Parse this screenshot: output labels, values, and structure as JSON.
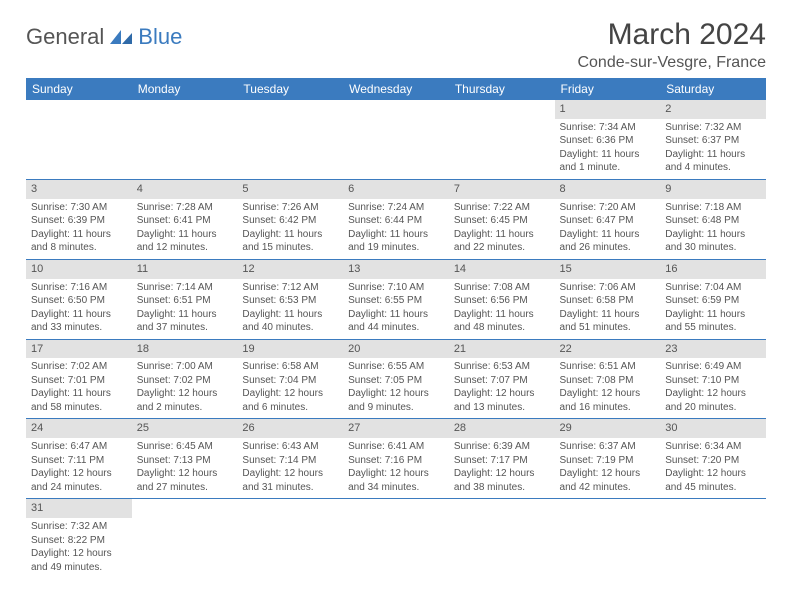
{
  "brand": {
    "part_a": "General",
    "part_b": "Blue"
  },
  "title": "March 2024",
  "location": "Conde-sur-Vesgre, France",
  "weekday_headers": [
    "Sunday",
    "Monday",
    "Tuesday",
    "Wednesday",
    "Thursday",
    "Friday",
    "Saturday"
  ],
  "colors": {
    "header_bg": "#3b7bbf",
    "header_fg": "#ffffff",
    "daynum_bg": "#e2e2e2",
    "cell_border": "#3b7bbf",
    "text": "#555555",
    "brand_blue": "#3b7bbf"
  },
  "weeks": [
    [
      null,
      null,
      null,
      null,
      null,
      {
        "num": "1",
        "sunrise": "Sunrise: 7:34 AM",
        "sunset": "Sunset: 6:36 PM",
        "daylight": "Daylight: 11 hours and 1 minute."
      },
      {
        "num": "2",
        "sunrise": "Sunrise: 7:32 AM",
        "sunset": "Sunset: 6:37 PM",
        "daylight": "Daylight: 11 hours and 4 minutes."
      }
    ],
    [
      {
        "num": "3",
        "sunrise": "Sunrise: 7:30 AM",
        "sunset": "Sunset: 6:39 PM",
        "daylight": "Daylight: 11 hours and 8 minutes."
      },
      {
        "num": "4",
        "sunrise": "Sunrise: 7:28 AM",
        "sunset": "Sunset: 6:41 PM",
        "daylight": "Daylight: 11 hours and 12 minutes."
      },
      {
        "num": "5",
        "sunrise": "Sunrise: 7:26 AM",
        "sunset": "Sunset: 6:42 PM",
        "daylight": "Daylight: 11 hours and 15 minutes."
      },
      {
        "num": "6",
        "sunrise": "Sunrise: 7:24 AM",
        "sunset": "Sunset: 6:44 PM",
        "daylight": "Daylight: 11 hours and 19 minutes."
      },
      {
        "num": "7",
        "sunrise": "Sunrise: 7:22 AM",
        "sunset": "Sunset: 6:45 PM",
        "daylight": "Daylight: 11 hours and 22 minutes."
      },
      {
        "num": "8",
        "sunrise": "Sunrise: 7:20 AM",
        "sunset": "Sunset: 6:47 PM",
        "daylight": "Daylight: 11 hours and 26 minutes."
      },
      {
        "num": "9",
        "sunrise": "Sunrise: 7:18 AM",
        "sunset": "Sunset: 6:48 PM",
        "daylight": "Daylight: 11 hours and 30 minutes."
      }
    ],
    [
      {
        "num": "10",
        "sunrise": "Sunrise: 7:16 AM",
        "sunset": "Sunset: 6:50 PM",
        "daylight": "Daylight: 11 hours and 33 minutes."
      },
      {
        "num": "11",
        "sunrise": "Sunrise: 7:14 AM",
        "sunset": "Sunset: 6:51 PM",
        "daylight": "Daylight: 11 hours and 37 minutes."
      },
      {
        "num": "12",
        "sunrise": "Sunrise: 7:12 AM",
        "sunset": "Sunset: 6:53 PM",
        "daylight": "Daylight: 11 hours and 40 minutes."
      },
      {
        "num": "13",
        "sunrise": "Sunrise: 7:10 AM",
        "sunset": "Sunset: 6:55 PM",
        "daylight": "Daylight: 11 hours and 44 minutes."
      },
      {
        "num": "14",
        "sunrise": "Sunrise: 7:08 AM",
        "sunset": "Sunset: 6:56 PM",
        "daylight": "Daylight: 11 hours and 48 minutes."
      },
      {
        "num": "15",
        "sunrise": "Sunrise: 7:06 AM",
        "sunset": "Sunset: 6:58 PM",
        "daylight": "Daylight: 11 hours and 51 minutes."
      },
      {
        "num": "16",
        "sunrise": "Sunrise: 7:04 AM",
        "sunset": "Sunset: 6:59 PM",
        "daylight": "Daylight: 11 hours and 55 minutes."
      }
    ],
    [
      {
        "num": "17",
        "sunrise": "Sunrise: 7:02 AM",
        "sunset": "Sunset: 7:01 PM",
        "daylight": "Daylight: 11 hours and 58 minutes."
      },
      {
        "num": "18",
        "sunrise": "Sunrise: 7:00 AM",
        "sunset": "Sunset: 7:02 PM",
        "daylight": "Daylight: 12 hours and 2 minutes."
      },
      {
        "num": "19",
        "sunrise": "Sunrise: 6:58 AM",
        "sunset": "Sunset: 7:04 PM",
        "daylight": "Daylight: 12 hours and 6 minutes."
      },
      {
        "num": "20",
        "sunrise": "Sunrise: 6:55 AM",
        "sunset": "Sunset: 7:05 PM",
        "daylight": "Daylight: 12 hours and 9 minutes."
      },
      {
        "num": "21",
        "sunrise": "Sunrise: 6:53 AM",
        "sunset": "Sunset: 7:07 PM",
        "daylight": "Daylight: 12 hours and 13 minutes."
      },
      {
        "num": "22",
        "sunrise": "Sunrise: 6:51 AM",
        "sunset": "Sunset: 7:08 PM",
        "daylight": "Daylight: 12 hours and 16 minutes."
      },
      {
        "num": "23",
        "sunrise": "Sunrise: 6:49 AM",
        "sunset": "Sunset: 7:10 PM",
        "daylight": "Daylight: 12 hours and 20 minutes."
      }
    ],
    [
      {
        "num": "24",
        "sunrise": "Sunrise: 6:47 AM",
        "sunset": "Sunset: 7:11 PM",
        "daylight": "Daylight: 12 hours and 24 minutes."
      },
      {
        "num": "25",
        "sunrise": "Sunrise: 6:45 AM",
        "sunset": "Sunset: 7:13 PM",
        "daylight": "Daylight: 12 hours and 27 minutes."
      },
      {
        "num": "26",
        "sunrise": "Sunrise: 6:43 AM",
        "sunset": "Sunset: 7:14 PM",
        "daylight": "Daylight: 12 hours and 31 minutes."
      },
      {
        "num": "27",
        "sunrise": "Sunrise: 6:41 AM",
        "sunset": "Sunset: 7:16 PM",
        "daylight": "Daylight: 12 hours and 34 minutes."
      },
      {
        "num": "28",
        "sunrise": "Sunrise: 6:39 AM",
        "sunset": "Sunset: 7:17 PM",
        "daylight": "Daylight: 12 hours and 38 minutes."
      },
      {
        "num": "29",
        "sunrise": "Sunrise: 6:37 AM",
        "sunset": "Sunset: 7:19 PM",
        "daylight": "Daylight: 12 hours and 42 minutes."
      },
      {
        "num": "30",
        "sunrise": "Sunrise: 6:34 AM",
        "sunset": "Sunset: 7:20 PM",
        "daylight": "Daylight: 12 hours and 45 minutes."
      }
    ],
    [
      {
        "num": "31",
        "sunrise": "Sunrise: 7:32 AM",
        "sunset": "Sunset: 8:22 PM",
        "daylight": "Daylight: 12 hours and 49 minutes."
      },
      null,
      null,
      null,
      null,
      null,
      null
    ]
  ]
}
